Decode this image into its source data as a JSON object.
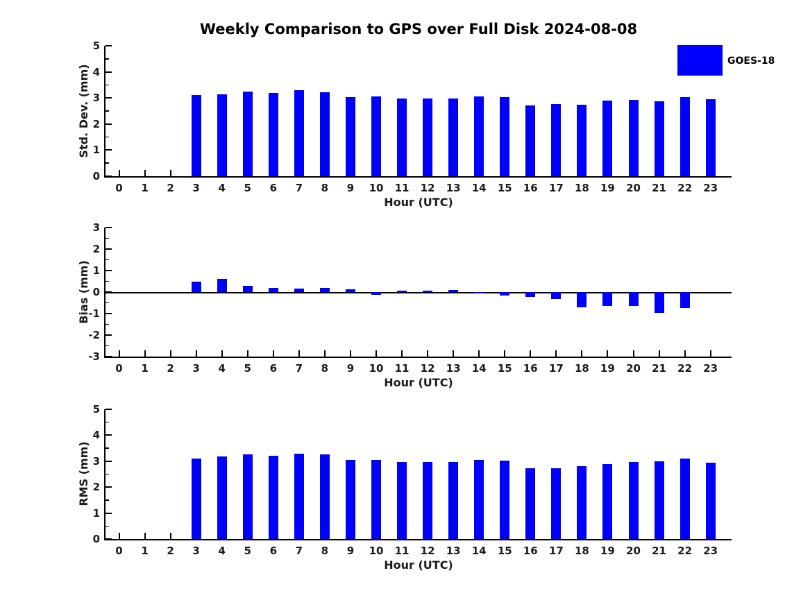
{
  "title": "Weekly Comparison to GPS over Full Disk 2024-08-08",
  "legend": {
    "label": "GOES-18",
    "swatch_color": "#0000FF"
  },
  "colors": {
    "bar": "#0000FF",
    "axis": "#000000",
    "text": "#1b1b1b"
  },
  "chart_data": [
    {
      "type": "bar",
      "series_name": "GOES-18",
      "ylabel": "Std. Dev. (mm)",
      "xlabel": "Hour (UTC)",
      "x": [
        0,
        1,
        2,
        3,
        4,
        5,
        6,
        7,
        8,
        9,
        10,
        11,
        12,
        13,
        14,
        15,
        16,
        17,
        18,
        19,
        20,
        21,
        22,
        23
      ],
      "values": [
        null,
        null,
        null,
        3.1,
        3.15,
        3.25,
        3.2,
        3.3,
        3.23,
        3.04,
        3.05,
        2.98,
        2.98,
        2.99,
        3.05,
        3.02,
        2.72,
        2.76,
        2.75,
        2.89,
        2.93,
        2.86,
        3.04,
        2.95
      ],
      "ylim": [
        0,
        5
      ],
      "yticks": [
        0,
        1,
        2,
        3,
        4,
        5
      ],
      "minor_ytick_step": 0.5,
      "zero_line": false,
      "grid": false,
      "legend_position": "top-right"
    },
    {
      "type": "bar",
      "series_name": "GOES-18",
      "ylabel": "Bias (mm)",
      "xlabel": "Hour (UTC)",
      "x": [
        0,
        1,
        2,
        3,
        4,
        5,
        6,
        7,
        8,
        9,
        10,
        11,
        12,
        13,
        14,
        15,
        16,
        17,
        18,
        19,
        20,
        21,
        22,
        23
      ],
      "values": [
        null,
        null,
        null,
        0.47,
        0.62,
        0.3,
        0.2,
        0.17,
        0.2,
        0.12,
        -0.12,
        0.05,
        0.05,
        0.11,
        -0.05,
        -0.17,
        -0.22,
        -0.32,
        -0.7,
        -0.63,
        -0.63,
        -0.97,
        -0.74,
        0.0
      ],
      "ylim": [
        -3,
        3
      ],
      "yticks": [
        -3,
        -2,
        -1,
        0,
        1,
        2,
        3
      ],
      "minor_ytick_step": 0.5,
      "zero_line": true,
      "grid": false,
      "legend_position": "none"
    },
    {
      "type": "bar",
      "series_name": "GOES-18",
      "ylabel": "RMS (mm)",
      "xlabel": "Hour (UTC)",
      "x": [
        0,
        1,
        2,
        3,
        4,
        5,
        6,
        7,
        8,
        9,
        10,
        11,
        12,
        13,
        14,
        15,
        16,
        17,
        18,
        19,
        20,
        21,
        22,
        23
      ],
      "values": [
        null,
        null,
        null,
        3.11,
        3.19,
        3.26,
        3.22,
        3.3,
        3.25,
        3.04,
        3.06,
        2.97,
        2.97,
        2.97,
        3.04,
        3.03,
        2.73,
        2.72,
        2.81,
        2.9,
        2.96,
        2.99,
        3.1,
        2.93
      ],
      "ylim": [
        0,
        5
      ],
      "yticks": [
        0,
        1,
        2,
        3,
        4,
        5
      ],
      "minor_ytick_step": 0.5,
      "zero_line": false,
      "grid": false,
      "legend_position": "none"
    }
  ]
}
